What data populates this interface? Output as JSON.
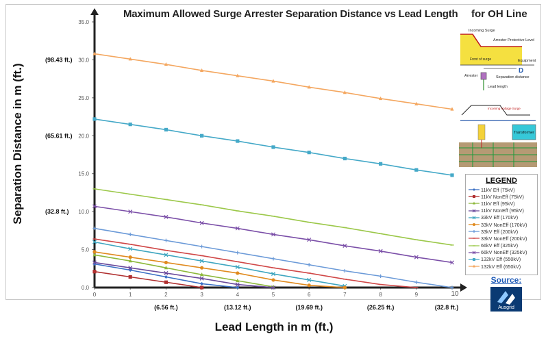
{
  "chart_data": {
    "type": "line",
    "title": "Maximum Allowed Surge Arrester Separation Distance vs Lead Length",
    "title_suffix": "for OH Line",
    "xlabel": "Lead Length in m (ft.)",
    "ylabel": "Separation Distance in m (ft.)",
    "xlim": [
      0,
      10
    ],
    "ylim": [
      0,
      35
    ],
    "x": [
      0,
      1,
      2,
      3,
      4,
      5,
      6,
      7,
      8,
      9,
      10
    ],
    "x_tick_labels": [
      "0",
      "1",
      "2",
      "3",
      "4",
      "5",
      "6",
      "7",
      "8",
      "9",
      "10"
    ],
    "y_ticks": [
      0,
      5,
      10,
      15,
      20,
      25,
      30,
      35
    ],
    "y_tick_labels": [
      "0.0",
      "5.0",
      "10.0",
      "15.0",
      "20.0",
      "25.0",
      "30.0",
      "35.0"
    ],
    "ft_x_labels": [
      {
        "x": 2,
        "text": "(6.56 ft.)"
      },
      {
        "x": 4,
        "text": "(13.12 ft.)"
      },
      {
        "x": 6,
        "text": "(19.69 ft.)"
      },
      {
        "x": 8,
        "text": "(26.25 ft.)"
      },
      {
        "x": 10,
        "text": "(32.8 ft.)"
      }
    ],
    "ft_y_labels": [
      {
        "y": 30,
        "text": "(98.43 ft.)"
      },
      {
        "y": 20,
        "text": "(65.61 ft.)"
      },
      {
        "y": 10,
        "text": "(32.8 ft.)"
      }
    ],
    "series": [
      {
        "name": "11kV Eff (75kV)",
        "color": "#3a6fc4",
        "marker": "diamond",
        "values": [
          3.1,
          2.3,
          1.4,
          0.5,
          0,
          null,
          null,
          null,
          null,
          null,
          null
        ]
      },
      {
        "name": "11kV NonEff (75kV)",
        "color": "#b03030",
        "marker": "square",
        "values": [
          2.1,
          1.4,
          0.7,
          0,
          null,
          null,
          null,
          null,
          null,
          null,
          null
        ]
      },
      {
        "name": "11kV Eff (95kV)",
        "color": "#8db83b",
        "marker": "triangle",
        "values": [
          4.3,
          3.5,
          2.6,
          1.7,
          0.9,
          0.1,
          null,
          null,
          null,
          null,
          null
        ]
      },
      {
        "name": "11kV NonEff (95kV)",
        "color": "#6a4a9c",
        "marker": "x",
        "values": [
          3.3,
          2.6,
          1.9,
          1.2,
          0.4,
          0,
          null,
          null,
          null,
          null,
          null
        ]
      },
      {
        "name": "33kV Eff (170kV)",
        "color": "#3fa6c0",
        "marker": "x",
        "values": [
          6.0,
          5.1,
          4.3,
          3.5,
          2.7,
          1.8,
          1.0,
          0.2,
          null,
          null,
          null
        ]
      },
      {
        "name": "33kV NonEff (170kV)",
        "color": "#e08a1e",
        "marker": "circle",
        "values": [
          4.7,
          4.0,
          3.3,
          2.6,
          1.9,
          1.0,
          0.3,
          0,
          null,
          null,
          null
        ]
      },
      {
        "name": "33kV Eff (200kV)",
        "color": "#6b9ad8",
        "marker": "plus",
        "values": [
          7.8,
          7.0,
          6.2,
          5.4,
          4.6,
          3.8,
          3.0,
          2.2,
          1.5,
          0.7,
          0
        ]
      },
      {
        "name": "33kV NonEff (200kV)",
        "color": "#d04848",
        "marker": "dash",
        "values": [
          6.4,
          5.7,
          4.9,
          4.2,
          3.4,
          2.6,
          1.9,
          1.1,
          0.4,
          0,
          null
        ]
      },
      {
        "name": "66kV Eff (325kV)",
        "color": "#9cc84a",
        "marker": "dash",
        "values": [
          13.0,
          12.3,
          11.6,
          10.9,
          10.1,
          9.4,
          8.6,
          7.9,
          7.1,
          6.3,
          5.6
        ]
      },
      {
        "name": "66kV NonEff (325kV)",
        "color": "#7b4fa8",
        "marker": "x",
        "values": [
          10.7,
          10.0,
          9.3,
          8.5,
          7.8,
          7.0,
          6.3,
          5.5,
          4.8,
          4.0,
          3.3
        ]
      },
      {
        "name": "132kV Eff (550kV)",
        "color": "#45a9c8",
        "marker": "square",
        "values": [
          22.2,
          21.5,
          20.8,
          20.0,
          19.3,
          18.5,
          17.8,
          17.0,
          16.3,
          15.5,
          14.8
        ]
      },
      {
        "name": "132kV Eff (650kV)",
        "color": "#f4a760",
        "marker": "triangle",
        "values": [
          30.8,
          30.1,
          29.4,
          28.6,
          27.9,
          27.2,
          26.4,
          25.7,
          24.9,
          24.2,
          23.5
        ]
      }
    ]
  },
  "legend": {
    "title": "LEGEND"
  },
  "source": {
    "label": "Source:",
    "logo_text": "Ausgrid"
  },
  "diagram_top": {
    "incoming_surge": "Incoming Surge",
    "protective_level": "Arrester Protective Level",
    "front_of_surge": "Front of surge",
    "equipment": "Equipment",
    "d_label": "D",
    "arrester": "Arrester",
    "separation_distance": "Separation distance",
    "lead_length": "Lead length"
  },
  "diagram_bottom": {
    "incoming_voltage_surge": "Incoming Voltage Surge",
    "transformer": "Transformer"
  }
}
